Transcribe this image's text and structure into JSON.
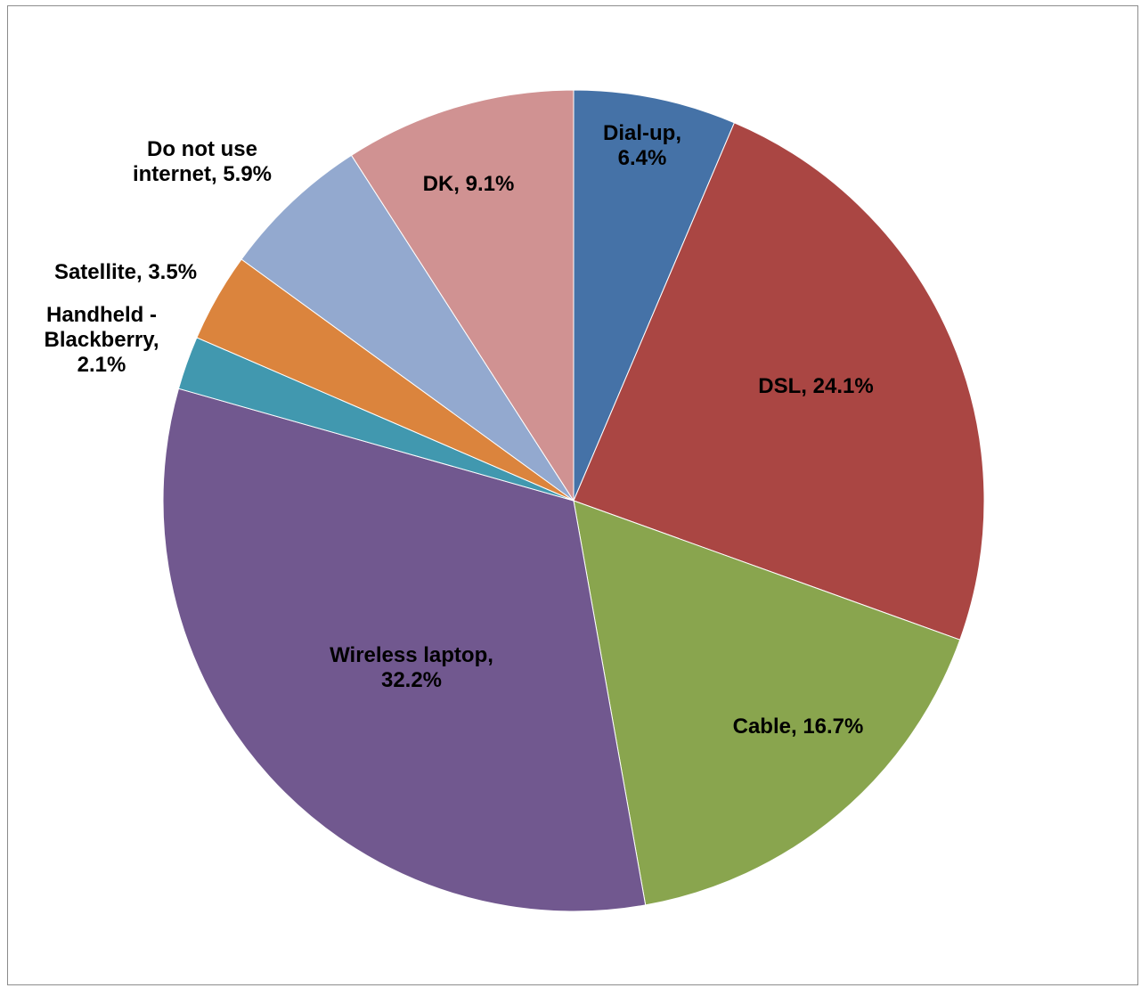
{
  "chart_data": {
    "type": "pie",
    "title": "",
    "start_angle_deg": 0,
    "direction": "clockwise",
    "slices": [
      {
        "label_lines": [
          "Dial-up,",
          "6.4%"
        ],
        "category": "Dial-up",
        "value": 6.4,
        "color": "#4572a7"
      },
      {
        "label_lines": [
          "DSL, 24.1%"
        ],
        "category": "DSL",
        "value": 24.1,
        "color": "#aa4643"
      },
      {
        "label_lines": [
          "Cable, 16.7%"
        ],
        "category": "Cable",
        "value": 16.7,
        "color": "#89a54e"
      },
      {
        "label_lines": [
          "Wireless laptop,",
          "32.2%"
        ],
        "category": "Wireless laptop",
        "value": 32.2,
        "color": "#71588f"
      },
      {
        "label_lines": [
          "Handheld -",
          "Blackberry,",
          "2.1%"
        ],
        "category": "Handheld - Blackberry",
        "value": 2.1,
        "color": "#4198af"
      },
      {
        "label_lines": [
          "Satellite, 3.5%"
        ],
        "category": "Satellite",
        "value": 3.5,
        "color": "#db843d"
      },
      {
        "label_lines": [
          "Do not use",
          "internet, 5.9%"
        ],
        "category": "Do not use internet",
        "value": 5.9,
        "color": "#93a9cf"
      },
      {
        "label_lines": [
          "DK, 9.1%"
        ],
        "category": "DK",
        "value": 9.1,
        "color": "#d09292"
      }
    ]
  }
}
